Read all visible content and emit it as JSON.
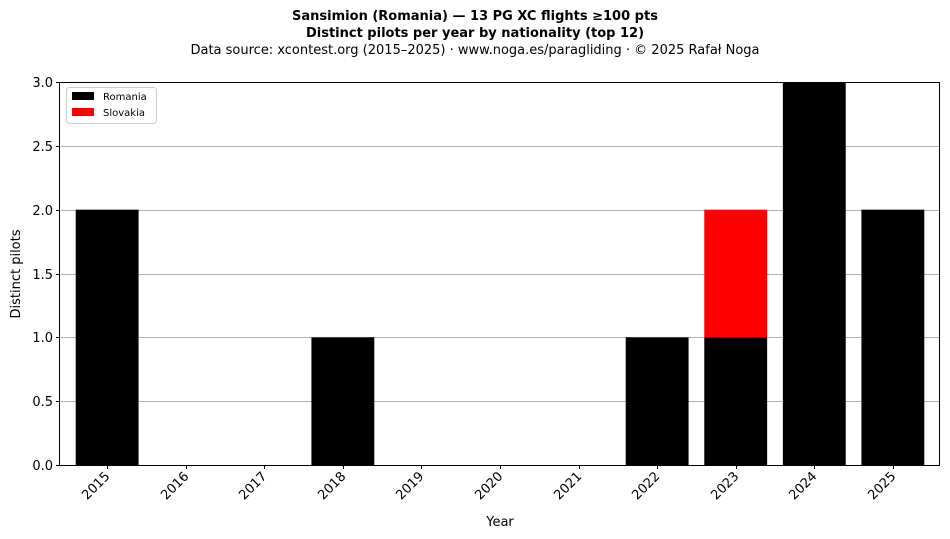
{
  "chart_data": {
    "type": "bar",
    "stacked": true,
    "title": "Sansimion (Romania)  —  13 PG XC flights ≥100 pts",
    "subtitle": "Distinct pilots per year by nationality (top 12)",
    "source": "Data source: xcontest.org (2015–2025)  ·  www.noga.es/paragliding  ·  © 2025 Rafał Noga",
    "xlabel": "Year",
    "ylabel": "Distinct pilots",
    "categories": [
      "2015",
      "2016",
      "2017",
      "2018",
      "2019",
      "2020",
      "2021",
      "2022",
      "2023",
      "2024",
      "2025"
    ],
    "series": [
      {
        "name": "Romania",
        "color": "#000000",
        "values": [
          2,
          0,
          0,
          1,
          0,
          0,
          0,
          1,
          1,
          3,
          2
        ]
      },
      {
        "name": "Slovakia",
        "color": "#ff0000",
        "values": [
          0,
          0,
          0,
          0,
          0,
          0,
          0,
          0,
          1,
          0,
          0
        ]
      }
    ],
    "ylim": [
      0,
      3
    ],
    "yticks": [
      "0.0",
      "0.5",
      "1.0",
      "1.5",
      "2.0",
      "2.5",
      "3.0"
    ],
    "grid": "y",
    "legend": "top-left"
  }
}
